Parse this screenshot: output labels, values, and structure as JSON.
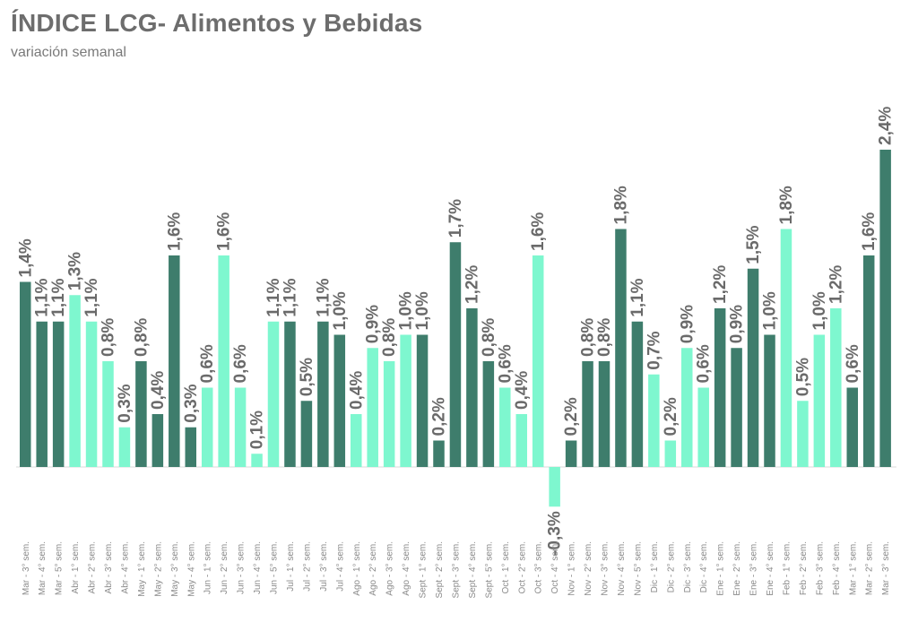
{
  "header": {
    "title": "ÍNDICE LCG- Alimentos y Bebidas",
    "subtitle": "variación semanal"
  },
  "colors": {
    "dark": "#3e7d6c",
    "light": "#7ef7cf"
  },
  "chart_data": {
    "type": "bar",
    "title": "ÍNDICE LCG- Alimentos y Bebidas",
    "subtitle": "variación semanal",
    "xlabel": "",
    "ylabel": "",
    "ylim": [
      -0.3,
      2.4
    ],
    "grid": false,
    "legend": "none",
    "categories": [
      "Mar - 3° sem.",
      "Mar - 4° sem.",
      "Mar - 5° sem.",
      "Abr - 1° sem.",
      "Abr - 2° sem.",
      "Abr - 3° sem.",
      "Abr - 4° sem.",
      "May - 1° sem.",
      "May - 2° sem.",
      "May - 3° sem.",
      "May - 4° sem.",
      "Jun - 1° sem.",
      "Jun - 2° sem.",
      "Jun - 3° sem.",
      "Jun - 4° sem.",
      "Jun - 5° sem.",
      "Jul - 1° sem.",
      "Jul - 2° sem.",
      "Jul - 3° sem.",
      "Jul - 4° sem.",
      "Ago - 1° sem.",
      "Ago - 2° sem.",
      "Ago - 3° sem.",
      "Ago - 4° sem.",
      "Sept - 1° sem.",
      "Sept - 2° sem.",
      "Sept - 3° sem.",
      "Sept - 4° sem.",
      "Sept - 5° sem.",
      "Oct - 1° sem.",
      "Oct - 2° sem.",
      "Oct - 3° sem.",
      "Oct - 4° sem.",
      "Nov - 1° sem.",
      "Nov - 2° sem.",
      "Nov - 3° sem.",
      "Nov - 4° sem.",
      "Nov - 5° sem.",
      "Dic - 1° sem.",
      "Dic - 2° sem.",
      "Dic - 3° sem.",
      "Dic - 4° sem.",
      "Ene - 1° sem.",
      "Ene - 2° sem.",
      "Ene - 3° sem.",
      "Ene - 4° sem.",
      "Feb - 1° sem.",
      "Feb - 2° sem.",
      "Feb - 3° sem.",
      "Feb - 4° sem.",
      "Mar - 1° sem.",
      "Mar - 2° sem.",
      "Mar - 3° sem."
    ],
    "values": [
      1.4,
      1.1,
      1.1,
      1.3,
      1.1,
      0.8,
      0.3,
      0.8,
      0.4,
      1.6,
      0.3,
      0.6,
      1.6,
      0.6,
      0.1,
      1.1,
      1.1,
      0.5,
      1.1,
      1.0,
      0.4,
      0.9,
      0.8,
      1.0,
      1.0,
      0.2,
      1.7,
      1.2,
      0.8,
      0.6,
      0.4,
      1.6,
      -0.3,
      0.2,
      0.8,
      0.8,
      1.8,
      1.1,
      0.7,
      0.2,
      0.9,
      0.6,
      1.2,
      0.9,
      1.5,
      1.0,
      1.8,
      0.5,
      1.0,
      1.2,
      0.6,
      1.6,
      2.4
    ],
    "value_labels": [
      "1,4%",
      "1,1%",
      "1,1%",
      "1,3%",
      "1,1%",
      "0,8%",
      "0,3%",
      "0,8%",
      "0,4%",
      "1,6%",
      "0,3%",
      "0,6%",
      "1,6%",
      "0,6%",
      "0,1%",
      "1,1%",
      "1,1%",
      "0,5%",
      "1,1%",
      "1,0%",
      "0,4%",
      "0,9%",
      "0,8%",
      "1,0%",
      "1,0%",
      "0,2%",
      "1,7%",
      "1,2%",
      "0,8%",
      "0,6%",
      "0,4%",
      "1,6%",
      "-0,3%",
      "0,2%",
      "0,8%",
      "0,8%",
      "1,8%",
      "1,1%",
      "0,7%",
      "0,2%",
      "0,9%",
      "0,6%",
      "1,2%",
      "0,9%",
      "1,5%",
      "1,0%",
      "1,8%",
      "0,5%",
      "1,0%",
      "1,2%",
      "0,6%",
      "1,6%",
      "2,4%"
    ],
    "bar_colors": [
      "dark",
      "dark",
      "dark",
      "light",
      "light",
      "light",
      "light",
      "dark",
      "dark",
      "dark",
      "dark",
      "light",
      "light",
      "light",
      "light",
      "light",
      "dark",
      "dark",
      "dark",
      "dark",
      "light",
      "light",
      "light",
      "light",
      "dark",
      "dark",
      "dark",
      "dark",
      "dark",
      "light",
      "light",
      "light",
      "light",
      "dark",
      "dark",
      "dark",
      "dark",
      "dark",
      "light",
      "light",
      "light",
      "light",
      "dark",
      "dark",
      "dark",
      "dark",
      "light",
      "light",
      "light",
      "light",
      "dark",
      "dark",
      "dark"
    ]
  }
}
